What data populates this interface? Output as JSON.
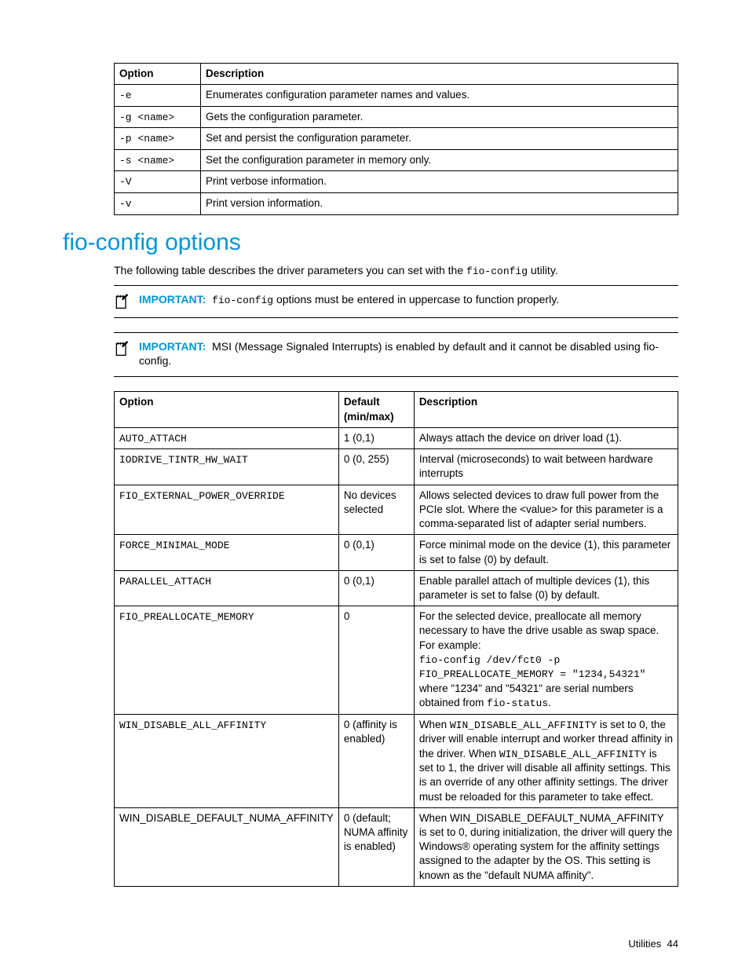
{
  "colors": {
    "text": "#000000",
    "accent": "#0096d6",
    "background": "#ffffff",
    "border": "#000000"
  },
  "typography": {
    "body_family": "Arial, Helvetica, sans-serif",
    "mono_family": "Courier New, monospace",
    "body_size_pt": 10.5,
    "h1_size_pt": 22
  },
  "table1": {
    "headers": [
      "Option",
      "Description"
    ],
    "rows": [
      {
        "option": "-e",
        "desc": "Enumerates configuration parameter names and values."
      },
      {
        "option": "-g <name>",
        "desc": "Gets the configuration parameter."
      },
      {
        "option": "-p <name>",
        "desc": "Set and persist the configuration parameter."
      },
      {
        "option": "-s <name>",
        "desc": "Set the configuration parameter in memory only."
      },
      {
        "option": "-V",
        "desc": "Print verbose information."
      },
      {
        "option": "-v",
        "desc": "Print version information."
      }
    ]
  },
  "section_title": "fio-config options",
  "lead_prefix": "The following table describes the driver parameters you can set with the ",
  "lead_code": "fio-config",
  "lead_suffix": " utility.",
  "important_label": "IMPORTANT:",
  "note1_code": "fio-config",
  "note1_rest": " options must be entered in uppercase to function properly.",
  "note2_text": "MSI (Message Signaled Interrupts) is enabled by default and it cannot be disabled using fio-config.",
  "table2": {
    "headers": [
      "Option",
      "Default (min/max)",
      "Description"
    ],
    "rows": [
      {
        "option_mono": "AUTO_ATTACH",
        "default": "1 (0,1)",
        "desc_plain": "Always attach the device on driver load (1)."
      },
      {
        "option_mono": "IODRIVE_TINTR_HW_WAIT",
        "default": "0 (0, 255)",
        "desc_plain": "Interval (microseconds) to wait between hardware interrupts"
      },
      {
        "option_mono": "FIO_EXTERNAL_POWER_OVERRIDE",
        "default": "No devices selected",
        "desc_plain": "Allows selected devices to draw full power from the PCIe slot. Where the <value> for this parameter is a comma-separated list of adapter serial numbers."
      },
      {
        "option_mono": "FORCE_MINIMAL_MODE",
        "default": "0 (0,1)",
        "desc_plain": "Force minimal mode on the device (1), this parameter is set to false (0) by default."
      },
      {
        "option_mono": "PARALLEL_ATTACH",
        "default": "0 (0,1)",
        "desc_plain": "Enable parallel attach of multiple devices (1), this parameter is set to false (0) by default."
      },
      {
        "option_mono": "FIO_PREALLOCATE_MEMORY",
        "default": "0",
        "desc_pre": "For the selected device, preallocate all memory necessary to have the drive usable as swap space. For example:",
        "desc_code1": "fio-config /dev/fct0 -p",
        "desc_code2": "FIO_PREALLOCATE_MEMORY = \"1234,54321\"",
        "desc_mid": "where \"1234\" and \"54321\" are serial numbers obtained from ",
        "desc_code3": "fio-status",
        "desc_end": "."
      },
      {
        "option_mono": "WIN_DISABLE_ALL_AFFINITY",
        "default": "0 (affinity is enabled)",
        "d7_a": "When ",
        "d7_code1": "WIN_DISABLE_ALL_AFFINITY",
        "d7_b": " is set to 0, the driver will enable interrupt and worker thread affinity in the driver. When ",
        "d7_code2": "WIN_DISABLE_ALL_AFFINITY",
        "d7_c": " is set to 1, the driver will disable all affinity settings. This is an override of any other affinity settings. The driver must be reloaded for this parameter to take effect."
      },
      {
        "option_plain": "WIN_DISABLE_DEFAULT_NUMA_AFFINITY",
        "default": "0 (default; NUMA affinity is enabled)",
        "desc_plain": "When WIN_DISABLE_DEFAULT_NUMA_AFFINITY is set to 0, during initialization, the driver will query the Windows® operating system for the affinity settings assigned to the adapter by the OS. This setting is known as the \"default NUMA affinity\"."
      }
    ]
  },
  "footer_section": "Utilities",
  "footer_page": "44"
}
